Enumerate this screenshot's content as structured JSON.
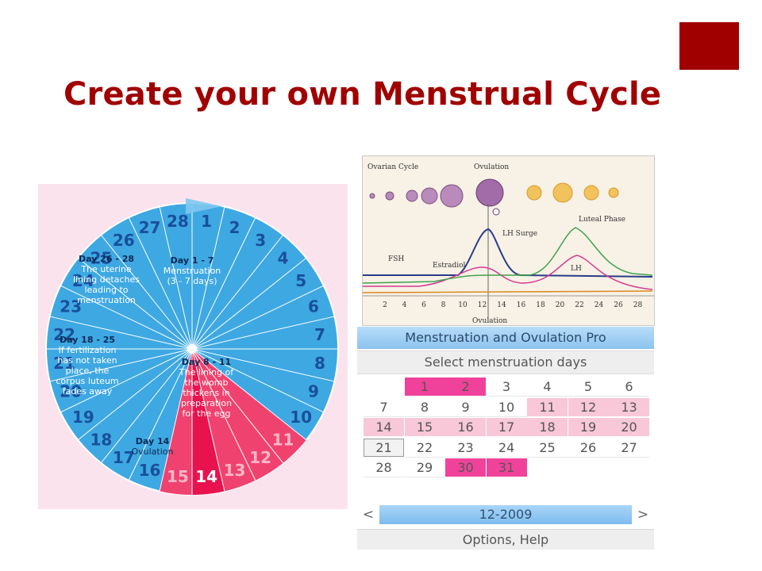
{
  "slide": {
    "title": "Create your own Menstrual Cycle",
    "accent_color": "#a00000"
  },
  "wheel": {
    "day_numbers": [
      "1",
      "2",
      "3",
      "4",
      "5",
      "6",
      "7",
      "8",
      "9",
      "10",
      "11",
      "12",
      "13",
      "14",
      "15",
      "16",
      "17",
      "18",
      "19",
      "20",
      "21",
      "22",
      "23",
      "24",
      "25",
      "26",
      "27",
      "28"
    ],
    "phases": [
      {
        "heading": "Day 1 - 7",
        "lines": [
          "Menstruation",
          "(3 - 7 days)"
        ]
      },
      {
        "heading": "Day 8 - 11",
        "lines": [
          "The lining of",
          "the womb",
          "thickens in",
          "preparation",
          "for the egg"
        ]
      },
      {
        "heading": "Day 14",
        "lines": [
          "Ovulation"
        ]
      },
      {
        "heading": "Day 18 - 25",
        "lines": [
          "If fertilization",
          "has not taken",
          "place, the",
          "corpus luteum",
          "fades away"
        ]
      },
      {
        "heading": "Day 26 - 28",
        "lines": [
          "The uterine",
          "lining detaches",
          "leading to",
          "menstruation"
        ]
      }
    ],
    "colors": {
      "blue": "#3ea8e3",
      "pink": "#f0426f",
      "background": "#fbe3ee"
    }
  },
  "hormone_graph": {
    "labels": {
      "ovarian_cycle": "Ovarian Cycle",
      "ovulation_top": "Ovulation",
      "luteal_phase": "Luteal Phase",
      "lh_surge": "LH Surge",
      "fsh": "FSH",
      "estradiol": "Estradiol",
      "lh": "LH",
      "ovulation_bottom": "Ovulation"
    },
    "x_ticks": [
      "2",
      "4",
      "6",
      "8",
      "10",
      "12",
      "14",
      "16",
      "18",
      "20",
      "22",
      "24",
      "26",
      "28"
    ]
  },
  "app": {
    "title": "Menstruation and Ovulation Pro",
    "subtitle": "Select menstruation days",
    "calendar_rows": [
      [
        {
          "d": "",
          "s": "blank"
        },
        {
          "d": "1",
          "s": "mag"
        },
        {
          "d": "2",
          "s": "mag"
        },
        {
          "d": "3",
          "s": "plain"
        },
        {
          "d": "4",
          "s": "plain"
        },
        {
          "d": "5",
          "s": "plain"
        },
        {
          "d": "6",
          "s": "plain"
        }
      ],
      [
        {
          "d": "7",
          "s": "plain"
        },
        {
          "d": "8",
          "s": "plain"
        },
        {
          "d": "9",
          "s": "plain"
        },
        {
          "d": "10",
          "s": "plain"
        },
        {
          "d": "11",
          "s": "light"
        },
        {
          "d": "12",
          "s": "light"
        },
        {
          "d": "13",
          "s": "light"
        }
      ],
      [
        {
          "d": "14",
          "s": "light"
        },
        {
          "d": "15",
          "s": "light"
        },
        {
          "d": "16",
          "s": "light"
        },
        {
          "d": "17",
          "s": "light"
        },
        {
          "d": "18",
          "s": "light"
        },
        {
          "d": "19",
          "s": "light"
        },
        {
          "d": "20",
          "s": "light"
        }
      ],
      [
        {
          "d": "21",
          "s": "today"
        },
        {
          "d": "22",
          "s": "plain"
        },
        {
          "d": "23",
          "s": "plain"
        },
        {
          "d": "24",
          "s": "plain"
        },
        {
          "d": "25",
          "s": "plain"
        },
        {
          "d": "26",
          "s": "plain"
        },
        {
          "d": "27",
          "s": "plain"
        }
      ],
      [
        {
          "d": "28",
          "s": "plain"
        },
        {
          "d": "29",
          "s": "plain"
        },
        {
          "d": "30",
          "s": "mag"
        },
        {
          "d": "31",
          "s": "mag"
        },
        {
          "d": "",
          "s": "blank"
        },
        {
          "d": "",
          "s": "blank"
        },
        {
          "d": "",
          "s": "blank"
        }
      ]
    ],
    "prev_label": "<",
    "month": "12-2009",
    "next_label": ">",
    "options_label": "Options, Help",
    "colors": {
      "magenta": "#f0429a",
      "light_pink": "#f8c8d8",
      "header_blue": "#8cc3ef"
    }
  }
}
